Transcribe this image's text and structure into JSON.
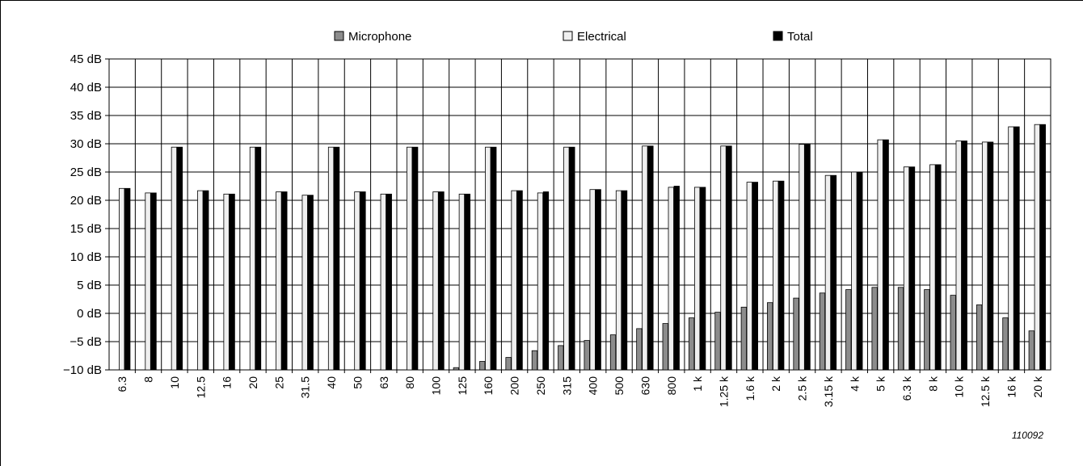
{
  "chart_data": {
    "type": "bar",
    "title": "",
    "xlabel": "",
    "ylabel": "",
    "ylim": [
      -10,
      45
    ],
    "yticks": [
      "45 dB",
      "40 dB",
      "35 dB",
      "30 dB",
      "25 dB",
      "20 dB",
      "15 dB",
      "10 dB",
      "5 dB",
      "0 dB",
      "−5 dB",
      "−10 dB"
    ],
    "ytick_values": [
      45,
      40,
      35,
      30,
      25,
      20,
      15,
      10,
      5,
      0,
      -5,
      -10
    ],
    "grid": true,
    "legend_position": "top-center",
    "categories": [
      "6.3",
      "8",
      "10",
      "12.5",
      "16",
      "20",
      "25",
      "31.5",
      "40",
      "50",
      "63",
      "80",
      "100",
      "125",
      "160",
      "200",
      "250",
      "315",
      "400",
      "500",
      "630",
      "800",
      "1 k",
      "1.25 k",
      "1.6 k",
      "2 k",
      "2.5 k",
      "3.15 k",
      "4 k",
      "5 k",
      "6.3 k",
      "8 k",
      "10 k",
      "12.5 k",
      "16 k",
      "20 k"
    ],
    "series": [
      {
        "name": "Microphone",
        "color": "#8c8c8c",
        "values": [
          null,
          null,
          null,
          null,
          null,
          null,
          null,
          null,
          null,
          null,
          null,
          null,
          null,
          -9.6,
          -8.5,
          -7.8,
          -6.6,
          -5.7,
          -4.8,
          -3.8,
          -2.7,
          -1.8,
          -0.8,
          0.2,
          1.1,
          1.9,
          2.7,
          3.6,
          4.2,
          4.6,
          4.6,
          4.2,
          3.2,
          1.5,
          -0.8,
          -3.1
        ]
      },
      {
        "name": "Electrical",
        "color": "#efefef",
        "values": [
          22.1,
          21.3,
          29.4,
          21.7,
          21.1,
          29.4,
          21.5,
          20.9,
          29.4,
          21.5,
          21.1,
          29.4,
          21.5,
          21.1,
          29.4,
          21.7,
          21.3,
          29.4,
          21.9,
          21.7,
          29.6,
          22.3,
          22.3,
          29.6,
          23.2,
          23.4,
          29.9,
          24.4,
          25.0,
          30.7,
          25.9,
          26.3,
          30.5,
          30.3,
          33.0,
          33.4
        ]
      },
      {
        "name": "Total",
        "color": "#000000",
        "values": [
          22.1,
          21.3,
          29.4,
          21.7,
          21.1,
          29.4,
          21.5,
          20.9,
          29.4,
          21.5,
          21.1,
          29.4,
          21.5,
          21.1,
          29.4,
          21.7,
          21.5,
          29.4,
          21.9,
          21.7,
          29.6,
          22.5,
          22.3,
          29.6,
          23.2,
          23.4,
          29.9,
          24.4,
          25.0,
          30.7,
          25.9,
          26.3,
          30.5,
          30.3,
          33.0,
          33.4
        ]
      }
    ]
  },
  "figure_id": "110092"
}
